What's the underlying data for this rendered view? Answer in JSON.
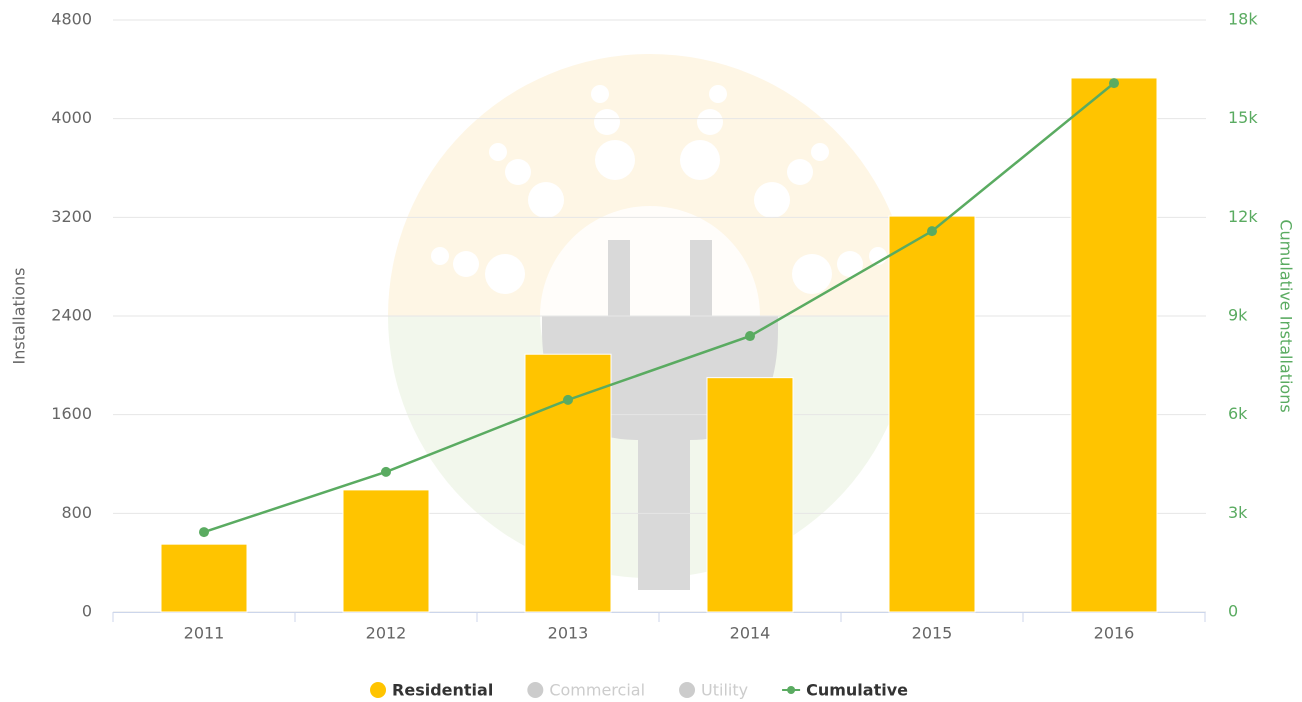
{
  "chart_data": {
    "type": "bar",
    "categories": [
      "2011",
      "2012",
      "2013",
      "2014",
      "2015",
      "2016"
    ],
    "y_label": "Installations",
    "y2_label": "Cumulative Installations",
    "ylim": [
      0,
      4800
    ],
    "yticks": [
      0,
      800,
      1600,
      2400,
      3200,
      4000,
      4800
    ],
    "y2lim": [
      0,
      18000
    ],
    "y2ticks": [
      0,
      {
        "value": 3000,
        "label": "3k"
      },
      {
        "value": 6000,
        "label": "6k"
      },
      {
        "value": 9000,
        "label": "9k"
      },
      {
        "value": 12000,
        "label": "12k"
      },
      {
        "value": 15000,
        "label": "15k"
      },
      {
        "value": 18000,
        "label": "18k"
      }
    ],
    "grid": true,
    "legend": "bottom",
    "series": [
      {
        "name": "Residential",
        "type": "bar",
        "color": "#ffc400",
        "values": [
          550,
          990,
          2090,
          1900,
          3210,
          4330
        ]
      },
      {
        "name": "Commercial",
        "color": "#cccccc",
        "visible": false
      },
      {
        "name": "Utility",
        "color": "#cccccc",
        "visible": false
      },
      {
        "name": "Cumulative",
        "type": "line",
        "axis": "y2",
        "color": "#5aab61",
        "values": [
          2430,
          4260,
          6450,
          8390,
          11580,
          16080
        ]
      }
    ]
  }
}
